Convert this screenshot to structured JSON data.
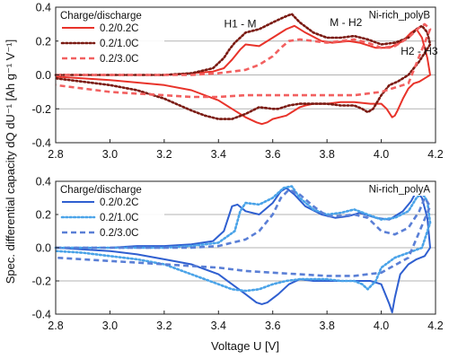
{
  "ylabel": "Spec. differential capacity dQ dU⁻¹ [Ah g⁻¹ V⁻¹]",
  "xlabel": "Voltage U [V]",
  "chart_data": [
    {
      "type": "line",
      "title": "Ni-rich_polyB",
      "legend_title": "Charge/discharge",
      "legend_position": "top-left",
      "xlim": [
        2.8,
        4.2
      ],
      "ylim": [
        -0.4,
        0.4
      ],
      "xticks": [
        "2.8",
        "3.0",
        "3.2",
        "3.4",
        "3.6",
        "3.8",
        "4.0",
        "4.2"
      ],
      "yticks": [
        "-0.4",
        "-0.2",
        "0.0",
        "0.2",
        "0.4"
      ],
      "grid": "horizontal",
      "annotations": [
        {
          "text": "H1 - M",
          "x": 3.48,
          "y": 0.28
        },
        {
          "text": "M - H2",
          "x": 3.87,
          "y": 0.29
        },
        {
          "text": "H2 - H3",
          "x": 4.14,
          "y": 0.12
        }
      ],
      "series": [
        {
          "name": "0.2/0.2C",
          "color": "#e8332a",
          "style": "solid",
          "x": [
            2.8,
            2.9,
            3.0,
            3.1,
            3.2,
            3.3,
            3.38,
            3.42,
            3.45,
            3.48,
            3.5,
            3.55,
            3.6,
            3.65,
            3.68,
            3.72,
            3.78,
            3.82,
            3.88,
            3.92,
            3.98,
            4.03,
            4.08,
            4.11,
            4.13,
            4.15,
            4.17,
            4.18,
            4.16,
            4.14,
            4.12,
            4.1,
            4.08,
            4.06,
            4.05,
            4.04,
            4.02,
            4.0,
            3.96,
            3.9,
            3.85,
            3.8,
            3.75,
            3.72,
            3.7,
            3.68,
            3.65,
            3.6,
            3.58,
            3.56,
            3.54,
            3.5,
            3.45,
            3.4,
            3.3,
            3.2,
            3.0,
            2.8
          ],
          "y": [
            0.0,
            0.0,
            0.0,
            0.0,
            0.0,
            0.01,
            0.02,
            0.04,
            0.09,
            0.15,
            0.18,
            0.17,
            0.22,
            0.27,
            0.29,
            0.25,
            0.2,
            0.19,
            0.2,
            0.19,
            0.16,
            0.16,
            0.2,
            0.25,
            0.27,
            0.22,
            0.1,
            0.0,
            -0.02,
            -0.04,
            -0.05,
            -0.08,
            -0.14,
            -0.21,
            -0.24,
            -0.25,
            -0.2,
            -0.17,
            -0.17,
            -0.16,
            -0.16,
            -0.17,
            -0.17,
            -0.18,
            -0.19,
            -0.21,
            -0.24,
            -0.26,
            -0.28,
            -0.29,
            -0.28,
            -0.25,
            -0.2,
            -0.15,
            -0.09,
            -0.06,
            -0.03,
            -0.01
          ]
        },
        {
          "name": "0.2/1.0C",
          "color": "#7a1a12",
          "style": "dotted",
          "x": [
            2.8,
            2.9,
            3.0,
            3.1,
            3.2,
            3.3,
            3.38,
            3.42,
            3.44,
            3.46,
            3.48,
            3.5,
            3.55,
            3.6,
            3.64,
            3.67,
            3.7,
            3.75,
            3.8,
            3.85,
            3.9,
            3.95,
            4.0,
            4.05,
            4.1,
            4.13,
            4.15,
            4.17,
            4.18,
            4.14,
            4.1,
            4.06,
            4.03,
            4.0,
            3.97,
            3.95,
            3.93,
            3.9,
            3.85,
            3.8,
            3.75,
            3.7,
            3.66,
            3.62,
            3.6,
            3.55,
            3.5,
            3.45,
            3.4,
            3.35,
            3.3,
            3.2,
            3.1,
            3.0,
            2.9,
            2.8
          ],
          "y": [
            0.0,
            0.0,
            0.0,
            0.0,
            0.0,
            0.01,
            0.04,
            0.1,
            0.15,
            0.19,
            0.22,
            0.25,
            0.27,
            0.31,
            0.34,
            0.36,
            0.31,
            0.25,
            0.22,
            0.22,
            0.23,
            0.21,
            0.18,
            0.19,
            0.22,
            0.27,
            0.29,
            0.25,
            0.18,
            0.08,
            0.0,
            -0.04,
            -0.06,
            -0.12,
            -0.2,
            -0.22,
            -0.2,
            -0.18,
            -0.18,
            -0.17,
            -0.17,
            -0.17,
            -0.18,
            -0.2,
            -0.2,
            -0.19,
            -0.23,
            -0.26,
            -0.26,
            -0.24,
            -0.21,
            -0.14,
            -0.09,
            -0.06,
            -0.04,
            -0.02
          ]
        },
        {
          "name": "0.2/3.0C",
          "color": "#f26060",
          "style": "dashed",
          "x": [
            2.8,
            2.9,
            3.0,
            3.1,
            3.2,
            3.3,
            3.4,
            3.5,
            3.55,
            3.6,
            3.63,
            3.66,
            3.7,
            3.75,
            3.8,
            3.85,
            3.9,
            3.95,
            4.0,
            4.05,
            4.1,
            4.14,
            4.16,
            4.18,
            4.1,
            4.0,
            3.9,
            3.8,
            3.7,
            3.6,
            3.5,
            3.4,
            3.3,
            3.2,
            3.1,
            3.0,
            2.9,
            2.8
          ],
          "y": [
            0.0,
            0.0,
            0.0,
            0.0,
            0.0,
            0.0,
            0.01,
            0.03,
            0.06,
            0.11,
            0.16,
            0.2,
            0.21,
            0.2,
            0.19,
            0.2,
            0.21,
            0.19,
            0.16,
            0.17,
            0.22,
            0.28,
            0.3,
            0.27,
            -0.05,
            -0.1,
            -0.12,
            -0.12,
            -0.12,
            -0.12,
            -0.12,
            -0.13,
            -0.13,
            -0.12,
            -0.11,
            -0.1,
            -0.08,
            -0.06
          ]
        }
      ]
    },
    {
      "type": "line",
      "title": "Ni-rich_polyA",
      "legend_title": "Charge/discharge",
      "legend_position": "top-left",
      "xlim": [
        2.8,
        4.2
      ],
      "ylim": [
        -0.4,
        0.4
      ],
      "xticks": [
        "2.8",
        "3.0",
        "3.2",
        "3.4",
        "3.6",
        "3.8",
        "4.0",
        "4.2"
      ],
      "yticks": [
        "-0.4",
        "-0.2",
        "0.0",
        "0.2",
        "0.4"
      ],
      "grid": "horizontal",
      "annotations": [],
      "series": [
        {
          "name": "0.2/0.2C",
          "color": "#2f5fd0",
          "style": "solid",
          "x": [
            2.8,
            2.9,
            3.0,
            3.1,
            3.2,
            3.3,
            3.38,
            3.42,
            3.44,
            3.45,
            3.47,
            3.5,
            3.55,
            3.6,
            3.63,
            3.65,
            3.68,
            3.72,
            3.78,
            3.83,
            3.88,
            3.92,
            3.98,
            4.03,
            4.08,
            4.11,
            4.13,
            4.15,
            4.17,
            4.18,
            4.16,
            4.13,
            4.1,
            4.07,
            4.05,
            4.04,
            4.03,
            4.0,
            3.96,
            3.9,
            3.85,
            3.8,
            3.75,
            3.7,
            3.66,
            3.62,
            3.58,
            3.56,
            3.54,
            3.5,
            3.45,
            3.4,
            3.3,
            3.2,
            3.1,
            3.0,
            2.9,
            2.8
          ],
          "y": [
            0.0,
            0.0,
            0.0,
            0.01,
            0.01,
            0.02,
            0.04,
            0.1,
            0.2,
            0.25,
            0.26,
            0.22,
            0.2,
            0.27,
            0.34,
            0.36,
            0.32,
            0.25,
            0.2,
            0.18,
            0.19,
            0.21,
            0.18,
            0.17,
            0.22,
            0.28,
            0.34,
            0.3,
            0.18,
            0.0,
            -0.05,
            -0.07,
            -0.1,
            -0.16,
            -0.3,
            -0.39,
            -0.34,
            -0.22,
            -0.2,
            -0.2,
            -0.2,
            -0.2,
            -0.2,
            -0.19,
            -0.22,
            -0.28,
            -0.33,
            -0.34,
            -0.33,
            -0.28,
            -0.22,
            -0.16,
            -0.1,
            -0.07,
            -0.04,
            -0.02,
            -0.01,
            0.0
          ]
        },
        {
          "name": "0.2/1.0C",
          "color": "#4aa3e8",
          "style": "dotted",
          "x": [
            2.8,
            2.9,
            3.0,
            3.1,
            3.2,
            3.3,
            3.4,
            3.46,
            3.48,
            3.5,
            3.55,
            3.6,
            3.64,
            3.67,
            3.7,
            3.75,
            3.8,
            3.85,
            3.9,
            3.95,
            4.0,
            4.05,
            4.1,
            4.13,
            4.15,
            4.17,
            4.18,
            4.15,
            4.1,
            4.05,
            4.0,
            3.98,
            3.95,
            3.93,
            3.9,
            3.85,
            3.8,
            3.75,
            3.7,
            3.65,
            3.6,
            3.55,
            3.5,
            3.45,
            3.4,
            3.3,
            3.2,
            3.1,
            3.0,
            2.9,
            2.8
          ],
          "y": [
            0.0,
            0.0,
            0.0,
            0.0,
            0.0,
            0.01,
            0.03,
            0.1,
            0.22,
            0.27,
            0.26,
            0.3,
            0.36,
            0.37,
            0.3,
            0.23,
            0.2,
            0.21,
            0.23,
            0.2,
            0.17,
            0.18,
            0.22,
            0.3,
            0.33,
            0.28,
            0.15,
            0.0,
            -0.03,
            -0.06,
            -0.12,
            -0.2,
            -0.25,
            -0.22,
            -0.2,
            -0.2,
            -0.19,
            -0.19,
            -0.19,
            -0.2,
            -0.22,
            -0.25,
            -0.26,
            -0.25,
            -0.22,
            -0.16,
            -0.1,
            -0.07,
            -0.05,
            -0.03,
            -0.02
          ]
        },
        {
          "name": "0.2/3.0C",
          "color": "#5a7fd6",
          "style": "dashed",
          "x": [
            2.8,
            2.9,
            3.0,
            3.1,
            3.2,
            3.3,
            3.4,
            3.5,
            3.55,
            3.6,
            3.63,
            3.66,
            3.7,
            3.75,
            3.8,
            3.85,
            3.9,
            3.95,
            4.0,
            4.05,
            4.1,
            4.14,
            4.16,
            4.18,
            4.1,
            4.0,
            3.9,
            3.8,
            3.7,
            3.6,
            3.5,
            3.4,
            3.3,
            3.2,
            3.1,
            3.0,
            2.9,
            2.8
          ],
          "y": [
            0.0,
            0.0,
            0.0,
            0.0,
            0.0,
            0.0,
            0.01,
            0.05,
            0.1,
            0.2,
            0.3,
            0.35,
            0.32,
            0.25,
            0.19,
            0.19,
            0.2,
            0.18,
            0.1,
            0.08,
            0.12,
            0.22,
            0.3,
            0.25,
            -0.06,
            -0.15,
            -0.17,
            -0.17,
            -0.16,
            -0.15,
            -0.14,
            -0.12,
            -0.11,
            -0.1,
            -0.09,
            -0.08,
            -0.07,
            -0.06
          ]
        }
      ]
    }
  ]
}
